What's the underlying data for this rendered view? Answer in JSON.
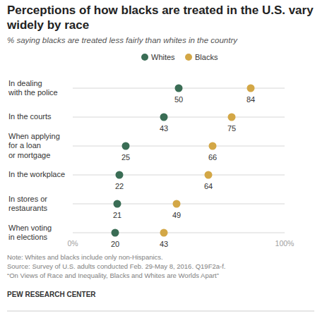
{
  "chart_data": {
    "type": "dot",
    "orientation": "horizontal",
    "title": "Perceptions of how blacks are treated in the U.S. vary\nwidely by race",
    "subtitle": "% saying blacks are treated less fairly than whites in the country",
    "categories": [
      "In dealing\nwith the police",
      "In the courts",
      "When applying\nfor a loan\nor mortgage",
      "In the workplace",
      "In stores or\nrestaurants",
      "When voting\nin elections"
    ],
    "series": [
      {
        "name": "Whites",
        "color": "#3a6d55",
        "values": [
          50,
          43,
          25,
          22,
          21,
          20
        ]
      },
      {
        "name": "Blacks",
        "color": "#d3a746",
        "values": [
          84,
          75,
          66,
          64,
          49,
          43
        ]
      }
    ],
    "xlim": [
      0,
      100
    ],
    "xticks": [
      {
        "value": 0,
        "label": "0%"
      },
      {
        "value": 100,
        "label": "100%"
      }
    ],
    "data_labels": true,
    "legend": "top",
    "annotations": [
      "Note: Whites and blacks include only non-Hispanics.",
      "Source: Survey of U.S. adults conducted Feb. 29-May 8, 2016. Q19F2a-f.",
      "“On Views of Race and Inequality, Blacks and Whites are Worlds Apart”"
    ],
    "credit": "PEW RESEARCH CENTER"
  }
}
